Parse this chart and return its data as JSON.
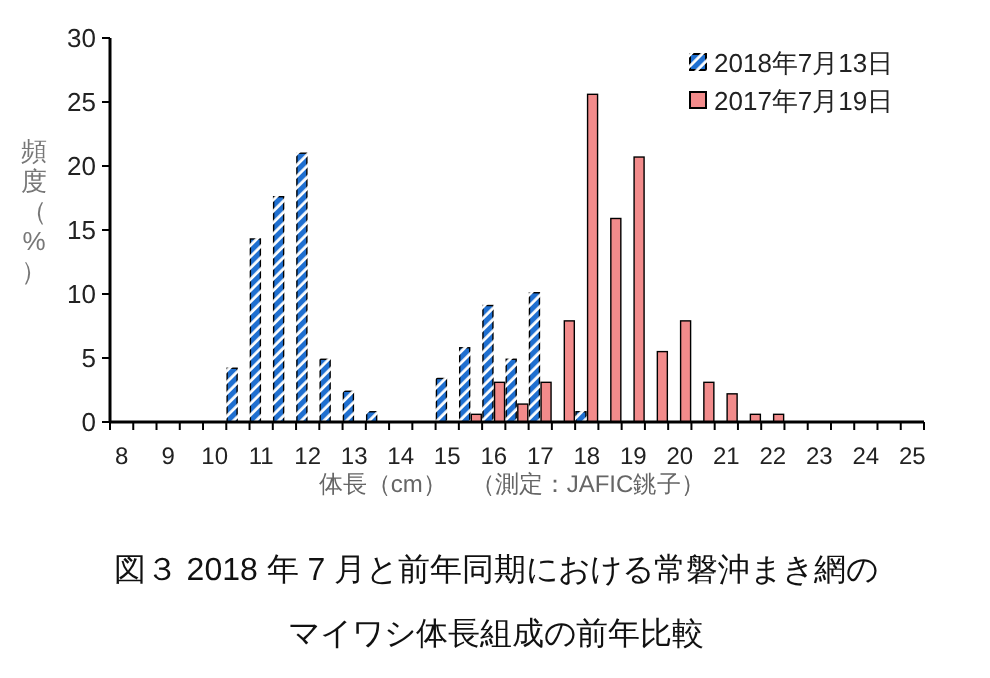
{
  "chart_data": {
    "type": "bar",
    "xlabel": "体長（cm）　（測定：JAFIC銚子）",
    "ylabel": "頻度（%）",
    "categories": [
      "8",
      null,
      "9",
      null,
      "10",
      null,
      "11",
      null,
      "12",
      null,
      "13",
      null,
      "14",
      null,
      "15",
      null,
      "16",
      null,
      "17",
      null,
      "18",
      null,
      "19",
      null,
      "20",
      null,
      "21",
      null,
      "22",
      null,
      "23",
      null,
      "24",
      null,
      "25"
    ],
    "series": [
      {
        "name": "2018年7月13日",
        "color": "#1f6fd0",
        "values": [
          0,
          0,
          0,
          0,
          0,
          4.2,
          14.3,
          17.6,
          21.0,
          4.9,
          2.4,
          0.8,
          0,
          0,
          3.4,
          5.8,
          9.1,
          4.9,
          10.1,
          0,
          0.8,
          0,
          0,
          0,
          0,
          0,
          0,
          0,
          0,
          0,
          0,
          0,
          0,
          0,
          0
        ]
      },
      {
        "name": "2017年7月19日",
        "color": "#f28b8b",
        "values": [
          0,
          0,
          0,
          0,
          0,
          0,
          0,
          0,
          0,
          0,
          0,
          0,
          0,
          0,
          0,
          0.6,
          3.1,
          1.4,
          3.1,
          7.9,
          25.6,
          15.9,
          20.7,
          5.5,
          7.9,
          3.1,
          2.2,
          0.6,
          0.6,
          0,
          0,
          0,
          0,
          0,
          0
        ]
      }
    ],
    "ylim": [
      0,
      30
    ],
    "yticks": [
      0,
      5,
      10,
      15,
      20,
      25,
      30
    ],
    "grid": false,
    "legend": "top right",
    "annotations": [
      "図３  2018 年 7 月と前年同期における常磐沖まき網の",
      "マイワシ体長組成の前年比較"
    ]
  }
}
